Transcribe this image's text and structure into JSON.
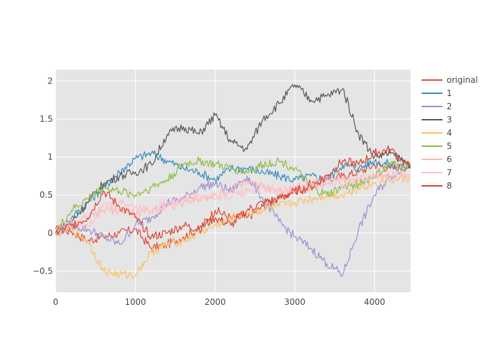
{
  "chart_data": {
    "type": "line",
    "title": "",
    "xlabel": "",
    "ylabel": "",
    "xlim": [
      0,
      4450
    ],
    "ylim": [
      -0.78,
      2.15
    ],
    "x_ticks": [
      0,
      1000,
      2000,
      3000,
      4000
    ],
    "y_ticks": [
      -0.5,
      0,
      0.5,
      1,
      1.5,
      2
    ],
    "x_tick_labels": [
      "0",
      "1000",
      "2000",
      "3000",
      "4000"
    ],
    "y_tick_labels": [
      "−0.5",
      "0",
      "0.5",
      "1",
      "1.5",
      "2"
    ],
    "grid": true,
    "plot_background": "#e5e5e5",
    "legend_position": "right",
    "series": [
      {
        "name": "original",
        "color": "#e24a33",
        "x": [
          0,
          200,
          400,
          600,
          800,
          1000,
          1200,
          1400,
          1600,
          1800,
          2000,
          2200,
          2400,
          2600,
          2800,
          3000,
          3200,
          3400,
          3600,
          3800,
          4000,
          4200,
          4450
        ],
        "y": [
          0.05,
          0.02,
          -0.1,
          -0.05,
          0.0,
          0.05,
          -0.2,
          -0.15,
          -0.05,
          0.05,
          0.3,
          0.2,
          0.2,
          0.35,
          0.45,
          0.55,
          0.65,
          0.7,
          0.75,
          0.8,
          0.9,
          0.85,
          0.88
        ]
      },
      {
        "name": "1",
        "color": "#348abd",
        "x": [
          0,
          200,
          400,
          600,
          800,
          1000,
          1200,
          1400,
          1600,
          1800,
          2000,
          2200,
          2400,
          2600,
          2800,
          3000,
          3200,
          3400,
          3600,
          3800,
          4000,
          4200,
          4450
        ],
        "y": [
          0.0,
          0.2,
          0.4,
          0.6,
          0.8,
          0.98,
          1.05,
          0.95,
          0.85,
          0.8,
          0.7,
          0.85,
          0.85,
          0.8,
          0.75,
          0.7,
          0.75,
          0.7,
          0.9,
          0.85,
          0.95,
          0.9,
          0.88
        ]
      },
      {
        "name": "2",
        "color": "#988ed5",
        "x": [
          0,
          200,
          400,
          600,
          800,
          1000,
          1200,
          1400,
          1600,
          1800,
          2000,
          2200,
          2400,
          2600,
          2800,
          3000,
          3200,
          3400,
          3600,
          3800,
          4000,
          4200,
          4450
        ],
        "y": [
          0.0,
          0.1,
          0.05,
          -0.05,
          -0.15,
          0.1,
          0.2,
          0.4,
          0.45,
          0.6,
          0.65,
          0.55,
          0.75,
          0.45,
          0.15,
          -0.05,
          -0.2,
          -0.4,
          -0.55,
          0.05,
          0.5,
          0.75,
          0.9
        ]
      },
      {
        "name": "3",
        "color": "#555555",
        "x": [
          0,
          200,
          400,
          600,
          800,
          1000,
          1200,
          1400,
          1600,
          1800,
          2000,
          2200,
          2400,
          2600,
          2800,
          3000,
          3200,
          3400,
          3600,
          3800,
          4000,
          4200,
          4450
        ],
        "y": [
          0.0,
          0.15,
          0.4,
          0.65,
          0.75,
          0.8,
          0.9,
          1.3,
          1.4,
          1.3,
          1.55,
          1.2,
          1.1,
          1.5,
          1.7,
          1.95,
          1.75,
          1.8,
          1.9,
          1.3,
          1.0,
          1.05,
          0.9
        ]
      },
      {
        "name": "4",
        "color": "#fbc15e",
        "x": [
          0,
          200,
          400,
          600,
          800,
          1000,
          1200,
          1400,
          1600,
          1800,
          2000,
          2200,
          2400,
          2600,
          2800,
          3000,
          3200,
          3400,
          3600,
          3800,
          4000,
          4200,
          4450
        ],
        "y": [
          0.0,
          0.05,
          -0.1,
          -0.5,
          -0.55,
          -0.55,
          -0.25,
          -0.15,
          -0.1,
          0.0,
          0.1,
          0.2,
          0.25,
          0.3,
          0.35,
          0.4,
          0.45,
          0.5,
          0.5,
          0.6,
          0.65,
          0.7,
          0.72
        ]
      },
      {
        "name": "5",
        "color": "#8eba42",
        "x": [
          0,
          200,
          400,
          600,
          800,
          1000,
          1200,
          1400,
          1600,
          1800,
          2000,
          2200,
          2400,
          2600,
          2800,
          3000,
          3200,
          3400,
          3600,
          3800,
          4000,
          4200,
          4450
        ],
        "y": [
          0.0,
          0.3,
          0.45,
          0.6,
          0.55,
          0.5,
          0.6,
          0.7,
          0.9,
          0.95,
          0.9,
          0.85,
          0.8,
          0.9,
          0.95,
          0.85,
          0.6,
          0.5,
          0.6,
          0.65,
          0.75,
          0.9,
          0.88
        ]
      },
      {
        "name": "6",
        "color": "#ffb5b8",
        "x": [
          0,
          200,
          400,
          600,
          800,
          1000,
          1200,
          1400,
          1600,
          1800,
          2000,
          2200,
          2400,
          2600,
          2800,
          3000,
          3200,
          3400,
          3600,
          3800,
          4000,
          4200,
          4450
        ],
        "y": [
          0.0,
          0.1,
          0.2,
          0.3,
          0.3,
          0.25,
          0.3,
          0.35,
          0.4,
          0.45,
          0.5,
          0.55,
          0.7,
          0.6,
          0.55,
          0.6,
          0.6,
          0.65,
          0.7,
          0.7,
          0.75,
          0.75,
          0.78
        ]
      },
      {
        "name": "7",
        "color": "#ffc0cb",
        "x": [
          0,
          200,
          400,
          600,
          800,
          1000,
          1200,
          1400,
          1600,
          1800,
          2000,
          2200,
          2400,
          2600,
          2800,
          3000,
          3200,
          3400,
          3600,
          3800,
          4000,
          4200,
          4450
        ],
        "y": [
          0.0,
          0.15,
          0.1,
          0.35,
          0.4,
          0.35,
          0.3,
          0.4,
          0.45,
          0.5,
          0.45,
          0.5,
          0.55,
          0.6,
          0.55,
          0.6,
          0.65,
          0.7,
          0.65,
          0.7,
          0.75,
          0.7,
          0.78
        ]
      },
      {
        "name": "8",
        "color": "#d9412e",
        "x": [
          0,
          200,
          400,
          600,
          800,
          1000,
          1200,
          1400,
          1600,
          1800,
          2000,
          2200,
          2400,
          2600,
          2800,
          3000,
          3200,
          3400,
          3600,
          3800,
          4000,
          4200,
          4450
        ],
        "y": [
          0.0,
          0.1,
          0.2,
          0.55,
          0.35,
          0.2,
          -0.05,
          0.0,
          0.1,
          0.05,
          0.2,
          0.1,
          0.3,
          0.4,
          0.45,
          0.55,
          0.6,
          0.75,
          0.95,
          0.9,
          1.05,
          1.1,
          0.85
        ]
      }
    ]
  }
}
